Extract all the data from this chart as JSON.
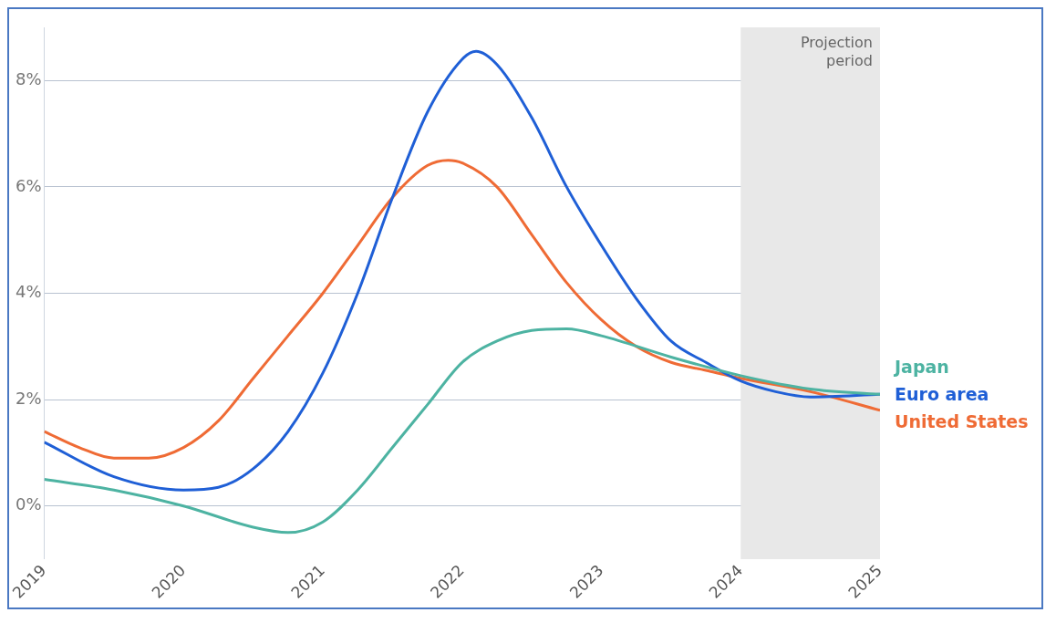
{
  "chart_data": {
    "type": "line",
    "xlim": [
      2019,
      2025
    ],
    "xticks": [
      2019,
      2020,
      2021,
      2022,
      2023,
      2024,
      2025
    ],
    "ylim": [
      -1,
      9
    ],
    "yticks": [
      {
        "value": 0,
        "label": "0%"
      },
      {
        "value": 2,
        "label": "2%"
      },
      {
        "value": 4,
        "label": "4%"
      },
      {
        "value": 6,
        "label": "6%"
      },
      {
        "value": 8,
        "label": "8%"
      }
    ],
    "grid": "y",
    "legend": false,
    "marker": "none",
    "line_style": "solid",
    "bands": [
      {
        "axis": "x",
        "from": 2024,
        "to": 2025,
        "label": "Projection period",
        "color": "#e8e8e8"
      }
    ],
    "series": [
      {
        "name": "Japan",
        "color": "#4db3a2",
        "x": [
          2019,
          2019.5,
          2020,
          2020.5,
          2020.75,
          2021,
          2021.25,
          2021.5,
          2021.75,
          2022,
          2022.25,
          2022.5,
          2022.75,
          2023,
          2023.5,
          2024,
          2024.5,
          2025
        ],
        "values": [
          0.5,
          0.3,
          0.0,
          -0.4,
          -0.5,
          -0.3,
          0.3,
          1.1,
          1.9,
          2.7,
          3.1,
          3.3,
          3.33,
          3.2,
          2.8,
          2.45,
          2.2,
          2.1
        ]
      },
      {
        "name": "Euro area",
        "color": "#1f5fd6",
        "x": [
          2019,
          2019.5,
          2020,
          2020.25,
          2020.5,
          2020.75,
          2021,
          2021.25,
          2021.5,
          2021.75,
          2022,
          2022.1,
          2022.25,
          2022.5,
          2022.75,
          2023,
          2023.25,
          2023.5,
          2023.75,
          2024,
          2024.25,
          2024.5,
          2025
        ],
        "values": [
          1.2,
          0.55,
          0.3,
          0.35,
          0.7,
          1.4,
          2.5,
          4.0,
          5.8,
          7.4,
          8.4,
          8.55,
          8.3,
          7.3,
          6.0,
          4.9,
          3.9,
          3.1,
          2.7,
          2.35,
          2.15,
          2.05,
          2.1
        ]
      },
      {
        "name": "United States",
        "color": "#ef6b35",
        "x": [
          2019,
          2019.25,
          2019.5,
          2019.75,
          2020,
          2020.25,
          2020.5,
          2020.75,
          2021,
          2021.25,
          2021.5,
          2021.75,
          2021.9,
          2022,
          2022.25,
          2022.5,
          2022.75,
          2023,
          2023.25,
          2023.5,
          2023.75,
          2024,
          2024.5,
          2025
        ],
        "values": [
          1.4,
          1.1,
          0.9,
          0.9,
          1.1,
          1.6,
          2.4,
          3.2,
          4.0,
          4.9,
          5.8,
          6.4,
          6.5,
          6.45,
          6.0,
          5.1,
          4.2,
          3.5,
          3.0,
          2.7,
          2.55,
          2.4,
          2.15,
          1.8
        ]
      }
    ]
  }
}
